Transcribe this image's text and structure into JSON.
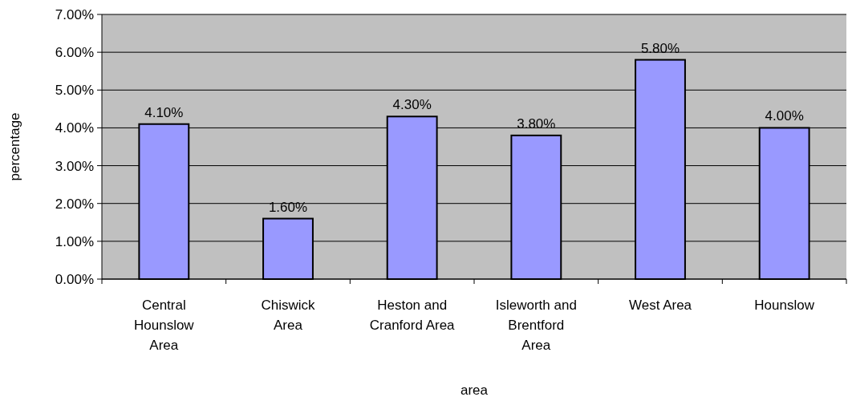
{
  "chart_data": {
    "type": "bar",
    "xlabel": "area",
    "ylabel": "percentage",
    "categories": [
      "Central\nHounslow\nArea",
      "Chiswick\nArea",
      "Heston and\nCranford Area",
      "Isleworth and\nBrentford\nArea",
      "West Area",
      "Hounslow"
    ],
    "values": [
      4.1,
      1.6,
      4.3,
      3.8,
      5.8,
      4.0
    ],
    "value_labels": [
      "4.10%",
      "1.60%",
      "4.30%",
      "3.80%",
      "5.80%",
      "4.00%"
    ],
    "color": "#9999ff",
    "ylim": [
      0,
      7
    ],
    "yticks": [
      {
        "value": 0,
        "label": "0.00%"
      },
      {
        "value": 1,
        "label": "1.00%"
      },
      {
        "value": 2,
        "label": "2.00%"
      },
      {
        "value": 3,
        "label": "3.00%"
      },
      {
        "value": 4,
        "label": "4.00%"
      },
      {
        "value": 5,
        "label": "5.00%"
      },
      {
        "value": 6,
        "label": "6.00%"
      },
      {
        "value": 7,
        "label": "7.00%"
      }
    ],
    "grid": "y"
  }
}
